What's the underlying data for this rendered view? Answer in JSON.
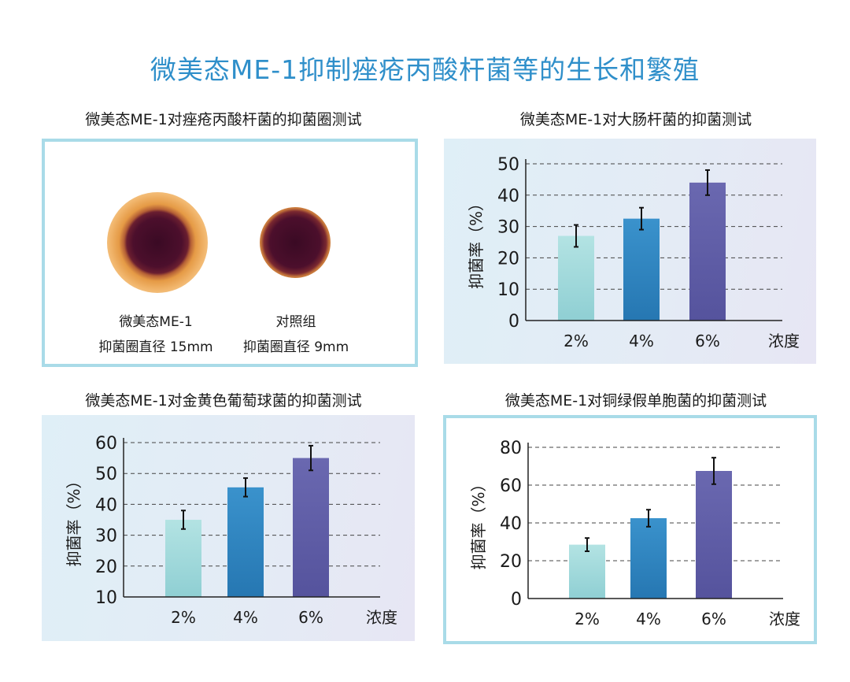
{
  "title": "微美态ME-1抑制痤疮丙酸杆菌等的生长和繁殖",
  "zone_test": {
    "title": "微美态ME-1对痤疮丙酸杆菌的抑菌圈测试",
    "samples": [
      {
        "name": "微美态ME-1",
        "zone_label": "抑菌圈直径 15mm",
        "diameter_mm": 15
      },
      {
        "name": "对照组",
        "zone_label": "抑菌圈直径 9mm",
        "diameter_mm": 9
      }
    ]
  },
  "colors": {
    "title": "#2f8fca",
    "bar_2": "#a6dcdc",
    "bar_4": "#2e86c1",
    "bar_6": "#5d5ba6",
    "frame": "#a9dbe8"
  },
  "chart_data": [
    {
      "type": "bar",
      "id": "ecoli",
      "title": "微美态ME-1对大肠杆菌的抑菌测试",
      "categories": [
        "2%",
        "4%",
        "6%"
      ],
      "values": [
        27,
        32.5,
        44
      ],
      "errors": [
        3.5,
        3.5,
        4
      ],
      "xlabel": "浓度",
      "ylabel": "抑菌率（%）",
      "ylim": [
        0,
        50
      ],
      "yticks": [
        0,
        10,
        20,
        30,
        40,
        50
      ],
      "grid": true
    },
    {
      "type": "bar",
      "id": "staph",
      "title": "微美态ME-1对金黄色葡萄球菌的抑菌测试",
      "categories": [
        "2%",
        "4%",
        "6%"
      ],
      "values": [
        35,
        45.5,
        55
      ],
      "errors": [
        3,
        3,
        4
      ],
      "xlabel": "浓度",
      "ylabel": "抑菌率（%）",
      "ylim": [
        10,
        60
      ],
      "yticks": [
        10,
        20,
        30,
        40,
        50,
        60
      ],
      "grid": true
    },
    {
      "type": "bar",
      "id": "pseudomonas",
      "title": "微美态ME-1对铜绿假单胞菌的抑菌测试",
      "categories": [
        "2%",
        "4%",
        "6%"
      ],
      "values": [
        28.5,
        42.5,
        67.5
      ],
      "errors": [
        3.5,
        4.5,
        7
      ],
      "xlabel": "浓度",
      "ylabel": "抑菌率（%）",
      "ylim": [
        0,
        80
      ],
      "yticks": [
        0,
        20,
        40,
        60,
        80
      ],
      "grid": true
    }
  ]
}
